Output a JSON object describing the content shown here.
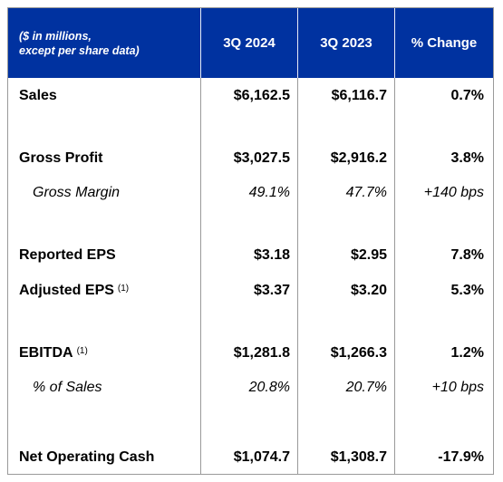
{
  "header": {
    "note": "($ in millions,\nexcept per share data)",
    "col1": "3Q 2024",
    "col2": "3Q 2023",
    "col3": "% Change"
  },
  "rows": [
    {
      "label": "Sales",
      "v1": "$6,162.5",
      "v2": "$6,116.7",
      "v3": "0.7%"
    },
    {
      "label": "Gross Profit",
      "v1": "$3,027.5",
      "v2": "$2,916.2",
      "v3": "3.8%"
    },
    {
      "label": "Gross Margin",
      "v1": "49.1%",
      "v2": "47.7%",
      "v3": "+140 bps"
    },
    {
      "label": "Reported EPS",
      "v1": "$3.18",
      "v2": "$2.95",
      "v3": "7.8%"
    },
    {
      "label": "Adjusted EPS",
      "footnote": "(1)",
      "v1": "$3.37",
      "v2": "$3.20",
      "v3": "5.3%"
    },
    {
      "label": "EBITDA",
      "footnote": "(1)",
      "v1": "$1,281.8",
      "v2": "$1,266.3",
      "v3": "1.2%"
    },
    {
      "label": "% of Sales",
      "v1": "20.8%",
      "v2": "20.7%",
      "v3": "+10 bps"
    },
    {
      "label": "Net Operating Cash",
      "v1": "$1,074.7",
      "v2": "$1,308.7",
      "v3": "-17.9%"
    }
  ],
  "colors": {
    "header_bg": "#0032a0",
    "header_text": "#ffffff",
    "grid": "#9a9a9a"
  }
}
